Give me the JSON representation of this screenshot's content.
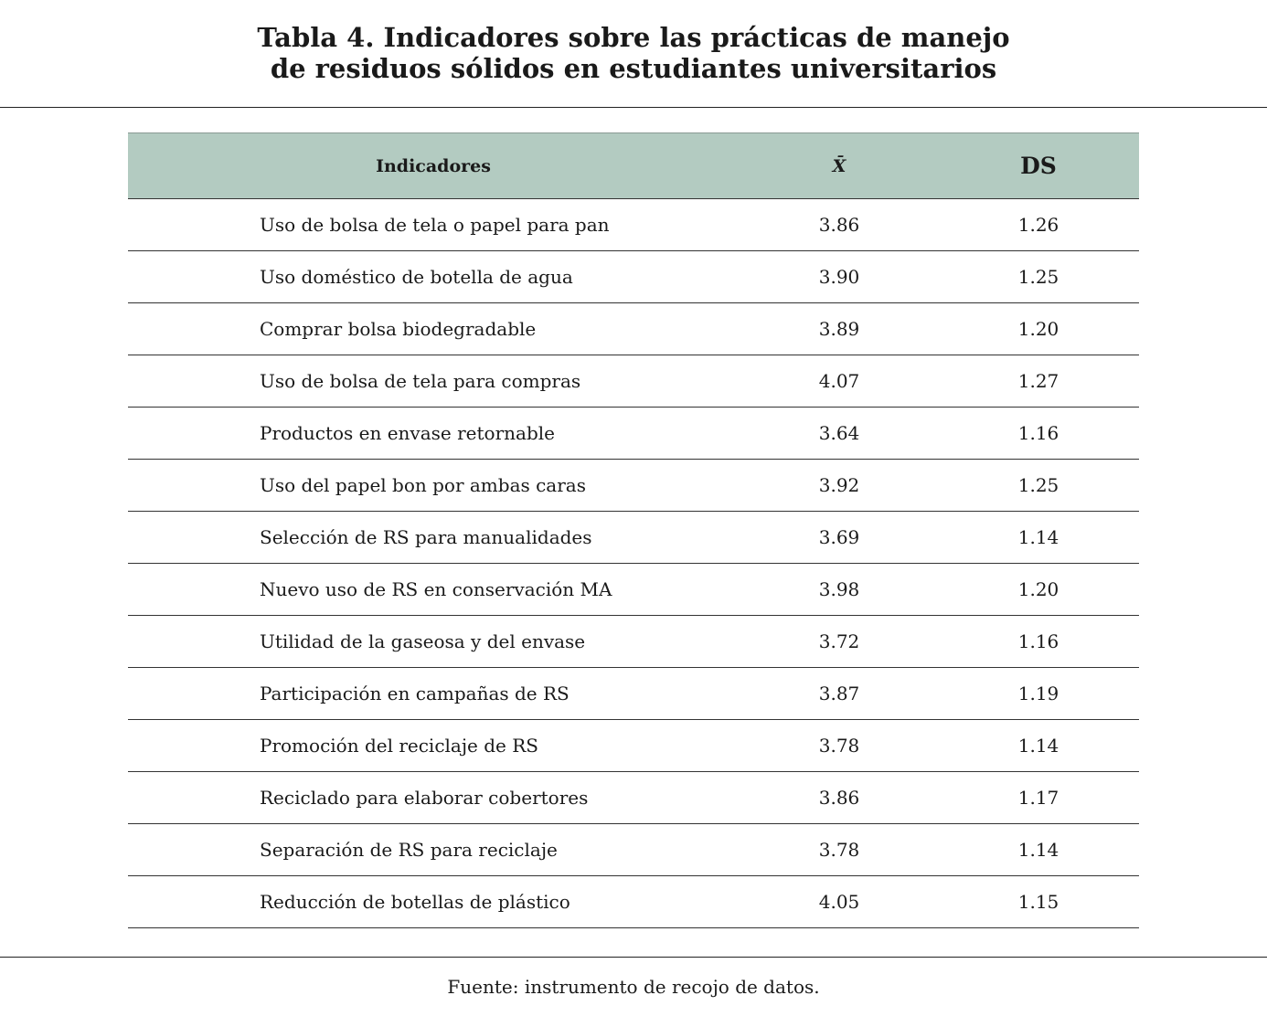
{
  "title_line1": "Tabla 4. Indicadores sobre las prácticas de manejo",
  "title_line2": "de residuos sólidos en estudiantes universitarios",
  "headers": {
    "indicator": "Indicadores",
    "mean": "X̄",
    "sd": "DS"
  },
  "rows": [
    {
      "indicator": "Uso de bolsa de tela o papel para pan",
      "mean": "3.86",
      "sd": "1.26"
    },
    {
      "indicator": "Uso doméstico de botella de agua",
      "mean": "3.90",
      "sd": "1.25"
    },
    {
      "indicator": "Comprar bolsa biodegradable",
      "mean": "3.89",
      "sd": "1.20"
    },
    {
      "indicator": "Uso de bolsa de tela para compras",
      "mean": "4.07",
      "sd": "1.27"
    },
    {
      "indicator": "Productos en envase retornable",
      "mean": "3.64",
      "sd": "1.16"
    },
    {
      "indicator": "Uso del papel bon por ambas caras",
      "mean": "3.92",
      "sd": "1.25"
    },
    {
      "indicator": "Selección de RS para manualidades",
      "mean": "3.69",
      "sd": "1.14"
    },
    {
      "indicator": "Nuevo uso de RS en conservación MA",
      "mean": "3.98",
      "sd": "1.20"
    },
    {
      "indicator": "Utilidad de la gaseosa y del envase",
      "mean": "3.72",
      "sd": "1.16"
    },
    {
      "indicator": "Participación en campañas de RS",
      "mean": "3.87",
      "sd": "1.19"
    },
    {
      "indicator": "Promoción del reciclaje de RS",
      "mean": "3.78",
      "sd": "1.14"
    },
    {
      "indicator": "Reciclado para elaborar cobertores",
      "mean": "3.86",
      "sd": "1.17"
    },
    {
      "indicator": "Separación de RS para reciclaje",
      "mean": "3.78",
      "sd": "1.14"
    },
    {
      "indicator": "Reducción de botellas de plástico",
      "mean": "4.05",
      "sd": "1.15"
    }
  ],
  "source": "Fuente: instrumento de recojo de datos."
}
